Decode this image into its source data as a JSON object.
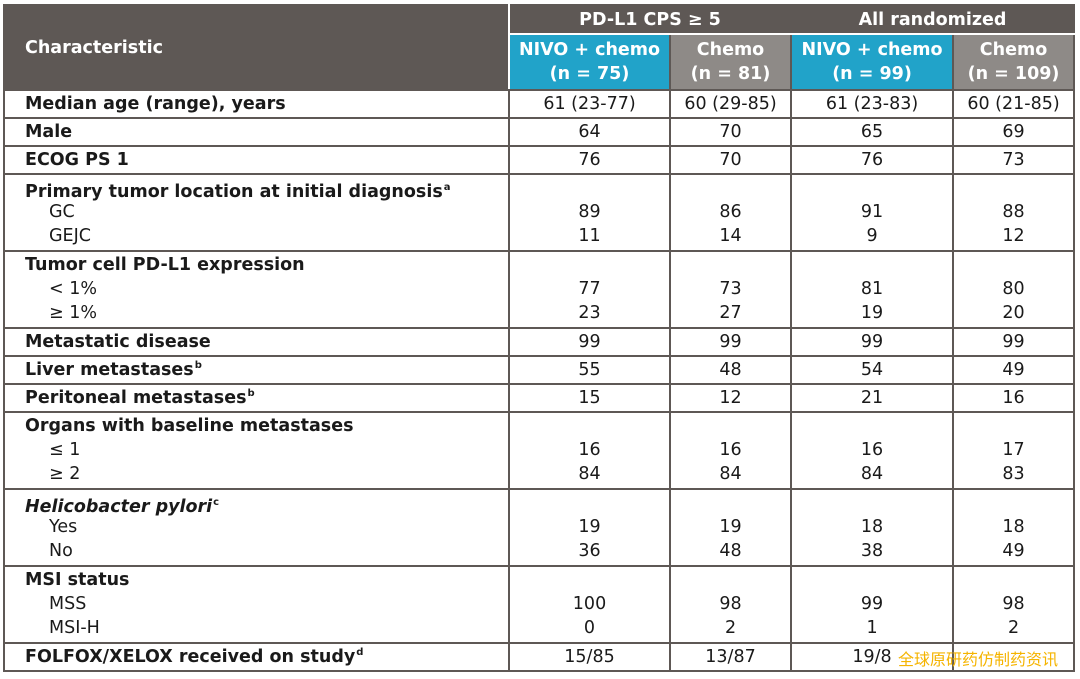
{
  "header": {
    "characteristic": "Characteristic",
    "group1": "PD-L1 CPS ≥ 5",
    "group2": "All randomized",
    "cols": [
      {
        "arm": "NIVO + chemo",
        "n": "(n = 75)"
      },
      {
        "arm": "Chemo",
        "n": "(n = 81)"
      },
      {
        "arm": "NIVO + chemo",
        "n": "(n = 99)"
      },
      {
        "arm": "Chemo",
        "n": "(n = 109)"
      }
    ]
  },
  "rows": [
    {
      "label": "Median age (range), years",
      "values": [
        "61 (23-77)",
        "60 (29-85)",
        "61 (23-83)",
        "60 (21-85)"
      ]
    },
    {
      "label": "Male",
      "values": [
        "64",
        "70",
        "65",
        "69"
      ]
    },
    {
      "label": "ECOG PS 1",
      "values": [
        "76",
        "70",
        "76",
        "73"
      ]
    },
    {
      "label": "Primary tumor location at initial diagnosis",
      "sup": "a",
      "subs": [
        {
          "label": "GC",
          "values": [
            "89",
            "86",
            "91",
            "88"
          ]
        },
        {
          "label": "GEJC",
          "values": [
            "11",
            "14",
            "9",
            "12"
          ]
        }
      ]
    },
    {
      "label": "Tumor cell PD-L1 expression",
      "subs": [
        {
          "label": "< 1%",
          "values": [
            "77",
            "73",
            "81",
            "80"
          ]
        },
        {
          "label": "≥ 1%",
          "values": [
            "23",
            "27",
            "19",
            "20"
          ]
        }
      ]
    },
    {
      "label": "Metastatic disease",
      "values": [
        "99",
        "99",
        "99",
        "99"
      ]
    },
    {
      "label": "Liver metastases",
      "sup": "b",
      "values": [
        "55",
        "48",
        "54",
        "49"
      ]
    },
    {
      "label": "Peritoneal metastases",
      "sup": "b",
      "values": [
        "15",
        "12",
        "21",
        "16"
      ]
    },
    {
      "label": "Organs with baseline metastases",
      "subs": [
        {
          "label": "≤ 1",
          "values": [
            "16",
            "16",
            "16",
            "17"
          ]
        },
        {
          "label": "≥ 2",
          "values": [
            "84",
            "84",
            "84",
            "83"
          ]
        }
      ]
    },
    {
      "label": "Helicobacter pylori",
      "sup": "c",
      "subs": [
        {
          "label": "Yes",
          "values": [
            "19",
            "19",
            "18",
            "18"
          ]
        },
        {
          "label": "No",
          "values": [
            "36",
            "48",
            "38",
            "49"
          ]
        }
      ]
    },
    {
      "label": "MSI status",
      "subs": [
        {
          "label": "MSS",
          "values": [
            "100",
            "98",
            "99",
            "98"
          ]
        },
        {
          "label": "MSI-H",
          "values": [
            "0",
            "2",
            "1",
            "2"
          ]
        }
      ]
    },
    {
      "label": "FOLFOX/XELOX received on study",
      "sup": "d",
      "values": [
        "15/85",
        "13/87",
        "19/8",
        ""
      ]
    }
  ],
  "watermark": "全球原研药仿制药资讯",
  "colors": {
    "header_dark": "#5e5855",
    "nivo_blue": "#21a3c9",
    "chemo_gray": "#8e8a87",
    "watermark": "#f5b400"
  }
}
